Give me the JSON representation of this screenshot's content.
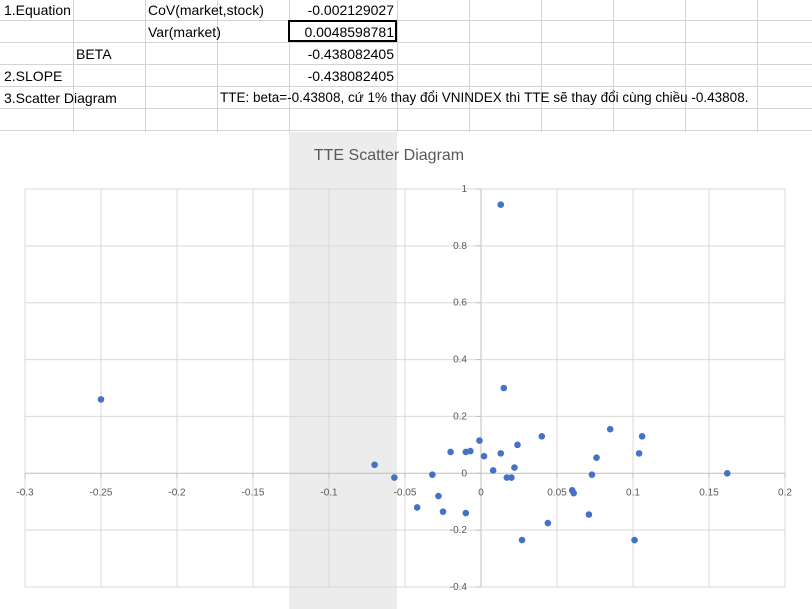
{
  "cells": {
    "a1": "1.Equation",
    "c1": "CoV(market,stock)",
    "e1": "-0.002129027",
    "c2": "Var(market)",
    "e2": "0.0048598781",
    "b3": "BETA",
    "e3": "-0.438082405",
    "a4": "2.SLOPE",
    "e4": "-0.438082405",
    "a5": "3.Scatter Diagram",
    "d5": "TTE: beta=-0.43808, cứ 1% thay đổi VNINDEX thì TTE sẽ thay đổi cùng chiều -0.43808."
  },
  "colors": {
    "point": "#4472c4",
    "gridline": "#d9d9d9",
    "axis": "#bfbfbf",
    "title": "#595959",
    "tick": "#595959",
    "highlight": "#ececec"
  },
  "chart_data": {
    "type": "scatter",
    "title": "TTE Scatter Diagram",
    "xlabel": "",
    "ylabel": "",
    "xlim": [
      -0.3,
      0.2
    ],
    "ylim": [
      -0.4,
      1
    ],
    "x_ticks": [
      "-0.3",
      "-0.25",
      "-0.2",
      "-0.15",
      "-0.1",
      "-0.05",
      "0",
      "0.05",
      "0.1",
      "0.15",
      "0.2"
    ],
    "y_ticks": [
      "-0.4",
      "-0.2",
      "0",
      "0.2",
      "0.4",
      "0.6",
      "0.8",
      "1"
    ],
    "grid": true,
    "legend": "none",
    "points": [
      {
        "x": -0.25,
        "y": 0.26
      },
      {
        "x": -0.07,
        "y": 0.03
      },
      {
        "x": -0.057,
        "y": -0.015
      },
      {
        "x": -0.042,
        "y": -0.12
      },
      {
        "x": -0.032,
        "y": -0.005
      },
      {
        "x": -0.028,
        "y": -0.08
      },
      {
        "x": -0.025,
        "y": -0.135
      },
      {
        "x": -0.02,
        "y": 0.075
      },
      {
        "x": -0.01,
        "y": 0.075
      },
      {
        "x": -0.01,
        "y": -0.14
      },
      {
        "x": -0.007,
        "y": 0.078
      },
      {
        "x": -0.001,
        "y": 0.115
      },
      {
        "x": 0.002,
        "y": 0.06
      },
      {
        "x": 0.008,
        "y": 0.01
      },
      {
        "x": 0.013,
        "y": 0.945
      },
      {
        "x": 0.015,
        "y": 0.3
      },
      {
        "x": 0.017,
        "y": -0.015
      },
      {
        "x": 0.013,
        "y": 0.07
      },
      {
        "x": 0.02,
        "y": -0.015
      },
      {
        "x": 0.022,
        "y": 0.02
      },
      {
        "x": 0.024,
        "y": 0.1
      },
      {
        "x": 0.027,
        "y": -0.235
      },
      {
        "x": 0.04,
        "y": 0.13
      },
      {
        "x": 0.044,
        "y": -0.175
      },
      {
        "x": 0.06,
        "y": -0.06
      },
      {
        "x": 0.061,
        "y": -0.07
      },
      {
        "x": 0.071,
        "y": -0.145
      },
      {
        "x": 0.073,
        "y": -0.005
      },
      {
        "x": 0.076,
        "y": 0.055
      },
      {
        "x": 0.085,
        "y": 0.155
      },
      {
        "x": 0.101,
        "y": -0.235
      },
      {
        "x": 0.104,
        "y": 0.07
      },
      {
        "x": 0.106,
        "y": 0.13
      },
      {
        "x": 0.162,
        "y": 0.0
      }
    ]
  }
}
